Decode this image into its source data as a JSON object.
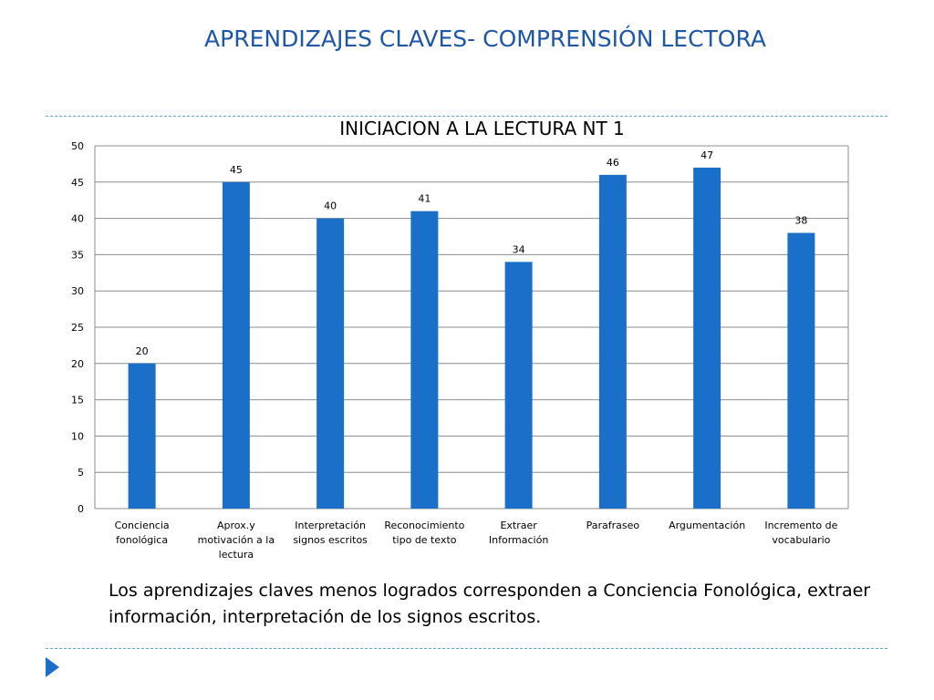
{
  "slide": {
    "title": "APRENDIZAJES  CLAVES- COMPRENSIÓN LECTORA",
    "caption": "Los aprendizajes claves menos logrados corresponden a Conciencia Fonológica, extraer información, interpretación de los signos escritos."
  },
  "colors": {
    "bar": "#1a6fc9",
    "title": "#1f56a6",
    "rule": "#5aa7d6"
  },
  "icons": {
    "footer": "play-icon"
  },
  "chart_data": {
    "type": "bar",
    "title": "INICIACION A LA LECTURA  NT 1",
    "categories": [
      [
        "Conciencia",
        "fonológica"
      ],
      [
        "Aprox.y",
        "motivación a la",
        "lectura"
      ],
      [
        "Interpretación",
        "signos escritos"
      ],
      [
        "Reconocimiento",
        "tipo de texto"
      ],
      [
        "Extraer",
        "Información"
      ],
      [
        "Parafraseo"
      ],
      [
        "Argumentación"
      ],
      [
        "Incremento de",
        "vocabulario"
      ]
    ],
    "values": [
      20,
      45,
      40,
      41,
      34,
      46,
      47,
      38
    ],
    "ylim": [
      0,
      50
    ],
    "yticks": [
      0,
      5,
      10,
      15,
      20,
      25,
      30,
      35,
      40,
      45,
      50
    ],
    "grid": true,
    "legend": "none",
    "data_labels": true
  }
}
